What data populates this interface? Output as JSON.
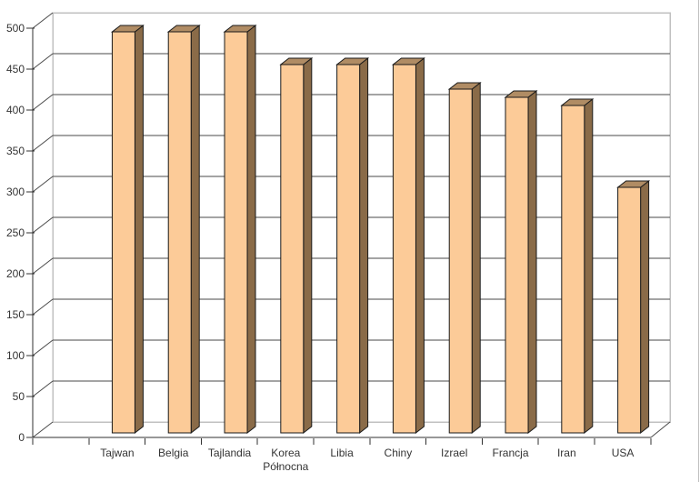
{
  "page": {
    "background": "#ffffff",
    "right_border_color": "#c0c0c0"
  },
  "chart_data": {
    "type": "bar",
    "style": "3d-column",
    "title": "",
    "xlabel": "",
    "ylabel": "",
    "categories": [
      "Tajwan",
      "Belgia",
      "Tajlandia",
      "Korea Północna",
      "Libia",
      "Chiny",
      "Izrael",
      "Francja",
      "Iran",
      "USA"
    ],
    "values": [
      490,
      490,
      490,
      450,
      450,
      450,
      420,
      410,
      400,
      300
    ],
    "ylim": [
      0,
      500
    ],
    "ytick_step": 50,
    "ytick_labels": [
      "0",
      "50",
      "100",
      "150",
      "200",
      "250",
      "300",
      "350",
      "400",
      "450",
      "500"
    ],
    "grid": true,
    "legend": false,
    "colors": {
      "bar_front": "#fccb98",
      "bar_top": "#b08c64",
      "bar_side": "#8a6b48",
      "bar_outline": "#1a1a1a",
      "gridline": "#4a4a4a",
      "wall_edge": "#c0c0c0",
      "axis": "#303030",
      "label_text": "#343434"
    }
  }
}
